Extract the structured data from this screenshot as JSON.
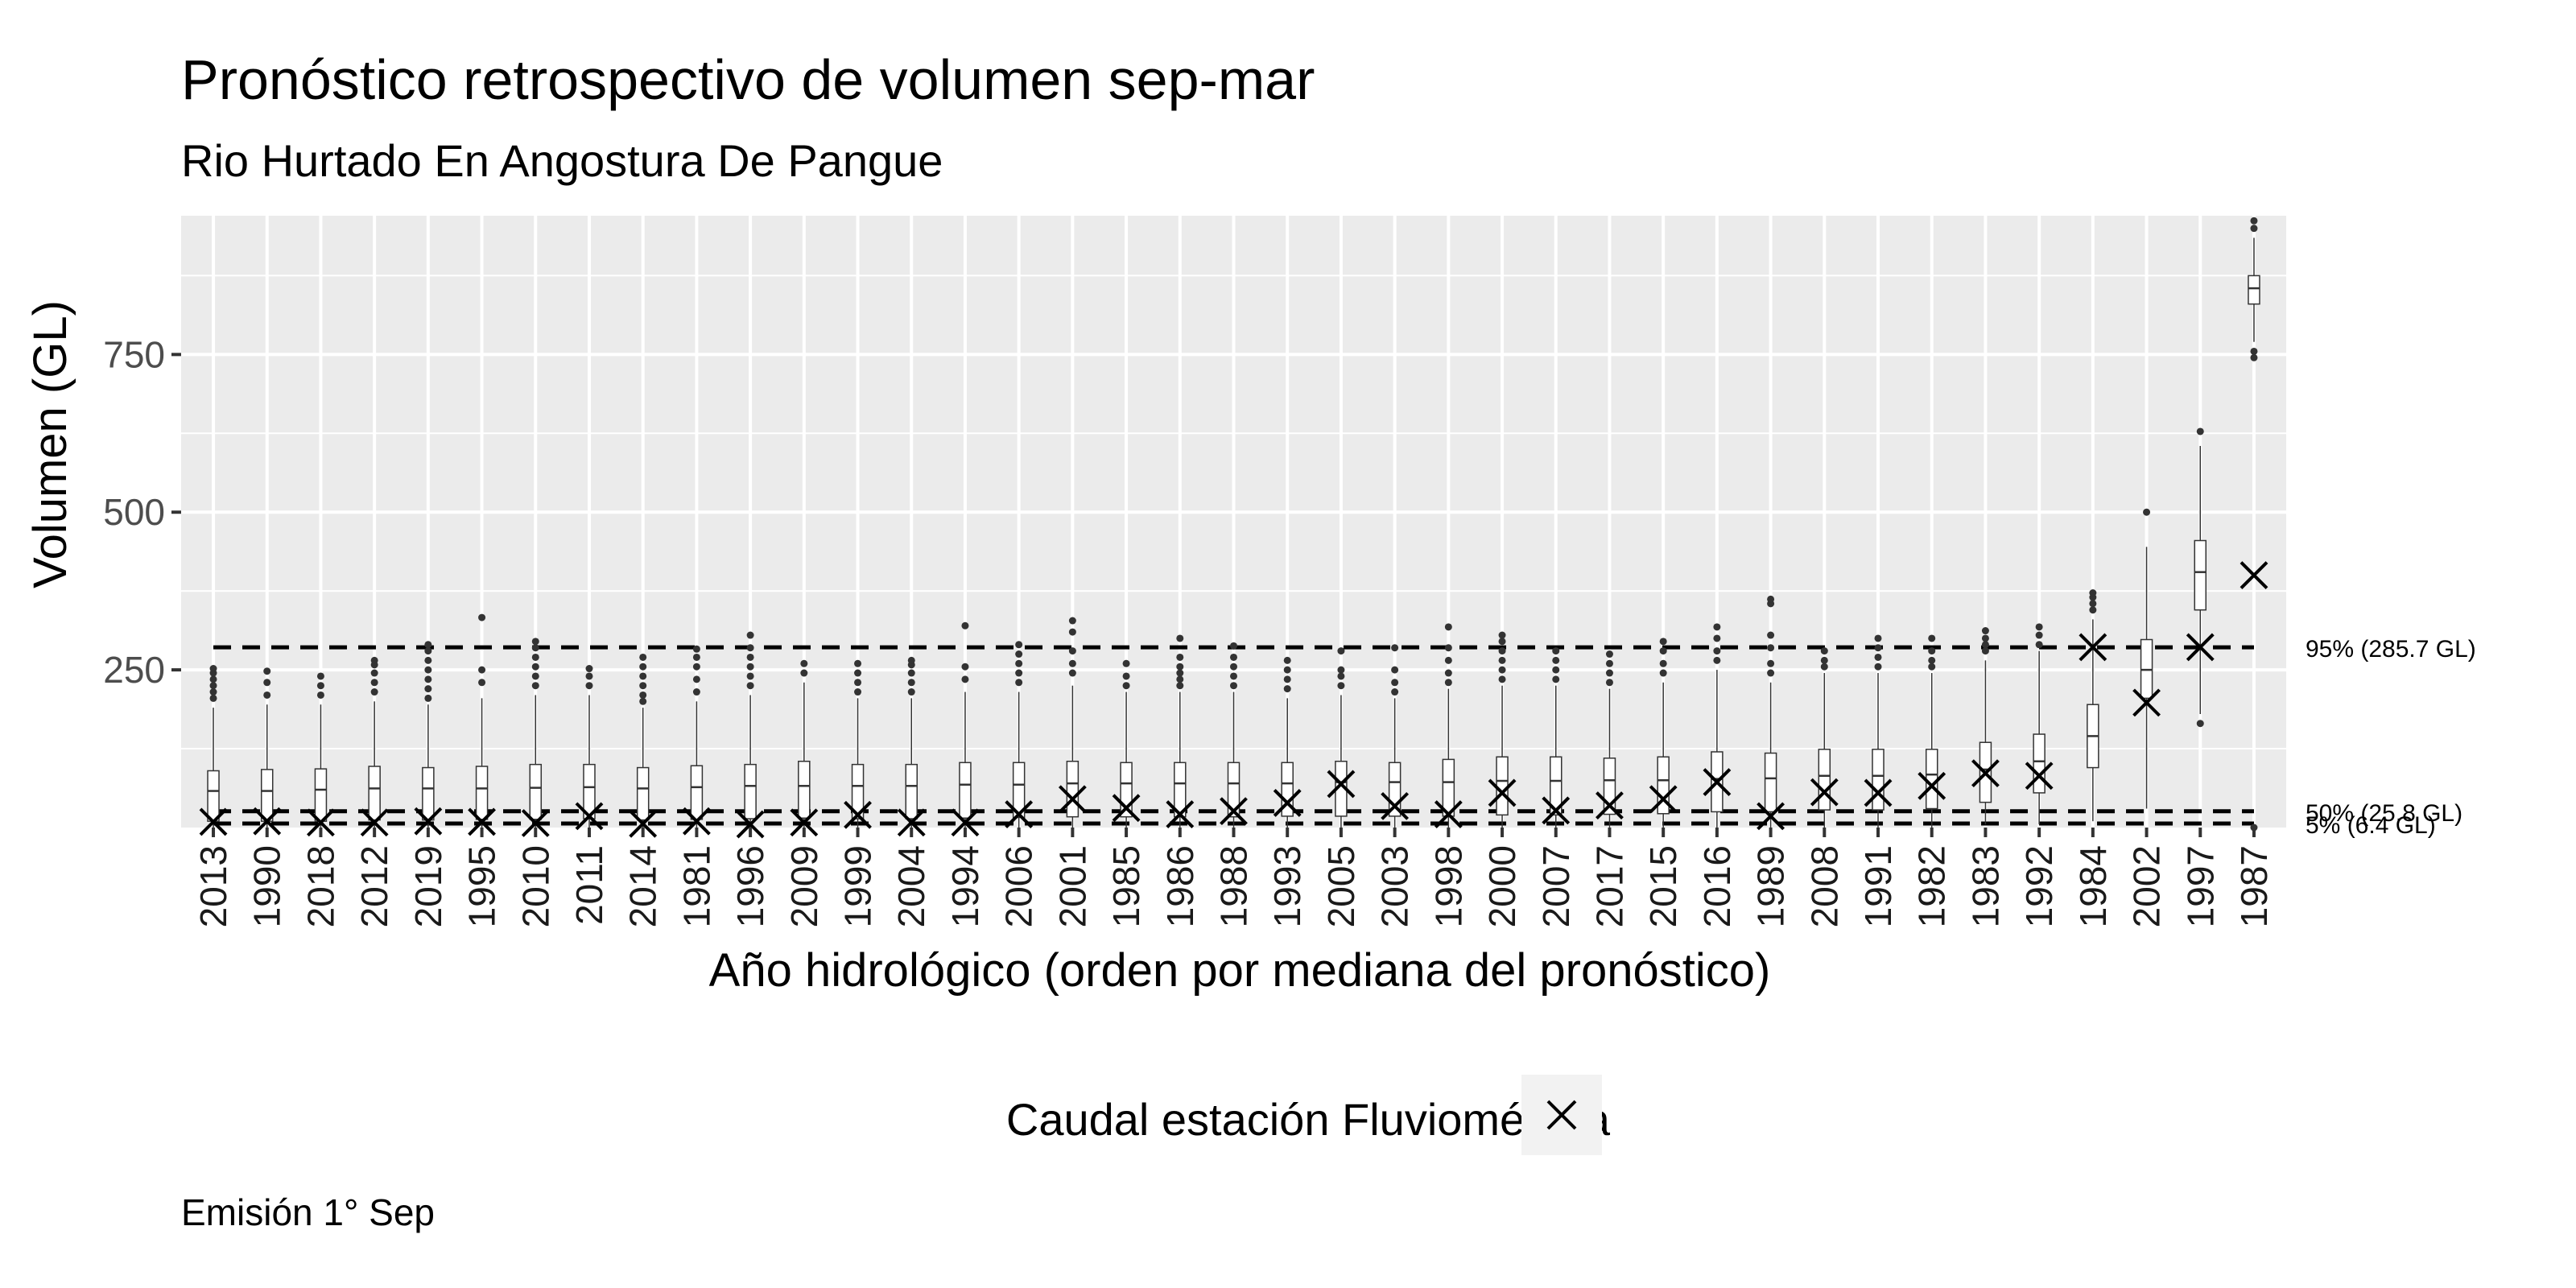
{
  "title": "Pronóstico retrospectivo de volumen sep-mar",
  "subtitle": "Rio Hurtado En Angostura De Pangue",
  "caption": "Emisión 1° Sep",
  "legend": {
    "label": "Caudal estación Fluviométrica",
    "marker": "x-cross-icon"
  },
  "colors": {
    "panel": "#ebebeb",
    "grid": "#ffffff",
    "box_outline": "#333333",
    "marker": "#000000"
  },
  "chart_data": {
    "type": "boxplot",
    "xlabel": "Año hidrológico (orden por mediana del pronóstico)",
    "ylabel": "Volumen (GL)",
    "ylim": [
      0,
      970
    ],
    "yticks": [
      250,
      500,
      750
    ],
    "ytick_labels": [
      "250",
      "500",
      "750"
    ],
    "grid": true,
    "legend_position": "bottom",
    "categories": [
      "2013",
      "1990",
      "2018",
      "2012",
      "2019",
      "1995",
      "2010",
      "2011",
      "2014",
      "1981",
      "1996",
      "2009",
      "1999",
      "2004",
      "1994",
      "2006",
      "2001",
      "1985",
      "1986",
      "1988",
      "1993",
      "2005",
      "2003",
      "1998",
      "2000",
      "2007",
      "2017",
      "2015",
      "2016",
      "1989",
      "2008",
      "1991",
      "1982",
      "1983",
      "1992",
      "1984",
      "2002",
      "1997",
      "1987"
    ],
    "boxes": [
      {
        "min": 0,
        "q1": 10,
        "median": 58,
        "q3": 90,
        "max": 190,
        "outliers": [
          205,
          215,
          225,
          235,
          245,
          252
        ]
      },
      {
        "min": 0,
        "q1": 10,
        "median": 58,
        "q3": 92,
        "max": 195,
        "outliers": [
          210,
          230,
          248
        ]
      },
      {
        "min": 0,
        "q1": 10,
        "median": 60,
        "q3": 93,
        "max": 195,
        "outliers": [
          210,
          225,
          240
        ]
      },
      {
        "min": 0,
        "q1": 12,
        "median": 62,
        "q3": 97,
        "max": 200,
        "outliers": [
          215,
          230,
          245,
          258,
          265
        ]
      },
      {
        "min": 0,
        "q1": 12,
        "median": 62,
        "q3": 95,
        "max": 195,
        "outliers": [
          205,
          220,
          235,
          250,
          265,
          280,
          290
        ]
      },
      {
        "min": 0,
        "q1": 13,
        "median": 62,
        "q3": 97,
        "max": 205,
        "outliers": [
          230,
          250,
          333
        ]
      },
      {
        "min": 0,
        "q1": 13,
        "median": 63,
        "q3": 100,
        "max": 210,
        "outliers": [
          225,
          240,
          255,
          270,
          285,
          295
        ]
      },
      {
        "min": 0,
        "q1": 14,
        "median": 64,
        "q3": 100,
        "max": 210,
        "outliers": [
          225,
          240,
          252
        ]
      },
      {
        "min": 0,
        "q1": 12,
        "median": 62,
        "q3": 95,
        "max": 190,
        "outliers": [
          200,
          210,
          225,
          240,
          255,
          270
        ]
      },
      {
        "min": 0,
        "q1": 13,
        "median": 64,
        "q3": 98,
        "max": 200,
        "outliers": [
          215,
          235,
          255,
          270,
          283
        ]
      },
      {
        "min": 0,
        "q1": 14,
        "median": 66,
        "q3": 100,
        "max": 210,
        "outliers": [
          225,
          240,
          255,
          270,
          285,
          305
        ]
      },
      {
        "min": 0,
        "q1": 15,
        "median": 66,
        "q3": 105,
        "max": 230,
        "outliers": [
          245,
          260
        ]
      },
      {
        "min": 0,
        "q1": 14,
        "median": 66,
        "q3": 100,
        "max": 205,
        "outliers": [
          215,
          230,
          245,
          260
        ]
      },
      {
        "min": 0,
        "q1": 14,
        "median": 66,
        "q3": 100,
        "max": 205,
        "outliers": [
          215,
          230,
          245,
          258,
          265
        ]
      },
      {
        "min": 0,
        "q1": 15,
        "median": 68,
        "q3": 103,
        "max": 215,
        "outliers": [
          235,
          255,
          320
        ]
      },
      {
        "min": 0,
        "q1": 16,
        "median": 68,
        "q3": 103,
        "max": 215,
        "outliers": [
          230,
          245,
          260,
          275,
          290
        ]
      },
      {
        "min": 0,
        "q1": 17,
        "median": 70,
        "q3": 105,
        "max": 225,
        "outliers": [
          245,
          260,
          280,
          310,
          328
        ]
      },
      {
        "min": 0,
        "q1": 17,
        "median": 70,
        "q3": 103,
        "max": 215,
        "outliers": [
          225,
          240,
          260
        ]
      },
      {
        "min": 0,
        "q1": 17,
        "median": 70,
        "q3": 103,
        "max": 215,
        "outliers": [
          225,
          235,
          245,
          255,
          270,
          300
        ]
      },
      {
        "min": 0,
        "q1": 17,
        "median": 70,
        "q3": 103,
        "max": 215,
        "outliers": [
          225,
          240,
          255,
          270,
          288
        ]
      },
      {
        "min": 0,
        "q1": 18,
        "median": 70,
        "q3": 103,
        "max": 205,
        "outliers": [
          220,
          235,
          250,
          265
        ]
      },
      {
        "min": 0,
        "q1": 18,
        "median": 72,
        "q3": 105,
        "max": 210,
        "outliers": [
          225,
          240,
          250,
          280
        ]
      },
      {
        "min": 0,
        "q1": 18,
        "median": 72,
        "q3": 103,
        "max": 205,
        "outliers": [
          215,
          230,
          250,
          285
        ]
      },
      {
        "min": 0,
        "q1": 18,
        "median": 72,
        "q3": 108,
        "max": 220,
        "outliers": [
          230,
          245,
          265,
          285,
          318
        ]
      },
      {
        "min": 0,
        "q1": 20,
        "median": 74,
        "q3": 112,
        "max": 225,
        "outliers": [
          235,
          250,
          265,
          280,
          295,
          305
        ]
      },
      {
        "min": 0,
        "q1": 20,
        "median": 74,
        "q3": 112,
        "max": 225,
        "outliers": [
          235,
          250,
          265,
          280
        ]
      },
      {
        "min": 0,
        "q1": 21,
        "median": 75,
        "q3": 110,
        "max": 220,
        "outliers": [
          230,
          245,
          260,
          275
        ]
      },
      {
        "min": 0,
        "q1": 22,
        "median": 75,
        "q3": 112,
        "max": 230,
        "outliers": [
          245,
          260,
          280,
          295
        ]
      },
      {
        "min": 0,
        "q1": 25,
        "median": 77,
        "q3": 120,
        "max": 250,
        "outliers": [
          265,
          280,
          300,
          318
        ]
      },
      {
        "min": 0,
        "q1": 25,
        "median": 78,
        "q3": 118,
        "max": 230,
        "outliers": [
          245,
          260,
          285,
          305,
          355,
          362
        ]
      },
      {
        "min": 0,
        "q1": 28,
        "median": 82,
        "q3": 124,
        "max": 245,
        "outliers": [
          255,
          265,
          280
        ]
      },
      {
        "min": 0,
        "q1": 28,
        "median": 82,
        "q3": 124,
        "max": 245,
        "outliers": [
          255,
          270,
          285,
          300
        ]
      },
      {
        "min": 0,
        "q1": 30,
        "median": 84,
        "q3": 124,
        "max": 245,
        "outliers": [
          255,
          265,
          280,
          300
        ]
      },
      {
        "min": 5,
        "q1": 40,
        "median": 92,
        "q3": 135,
        "max": 265,
        "outliers": [
          280,
          290,
          300,
          312
        ]
      },
      {
        "min": 5,
        "q1": 55,
        "median": 105,
        "q3": 148,
        "max": 280,
        "outliers": [
          290,
          305,
          318
        ]
      },
      {
        "min": 10,
        "q1": 95,
        "median": 145,
        "q3": 195,
        "max": 330,
        "outliers": [
          345,
          355,
          365,
          372
        ]
      },
      {
        "min": 30,
        "q1": 205,
        "median": 250,
        "q3": 298,
        "max": 445,
        "outliers": [
          500
        ]
      },
      {
        "min": 180,
        "q1": 345,
        "median": 405,
        "q3": 455,
        "max": 605,
        "outliers": [
          165,
          628
        ]
      },
      {
        "min": 770,
        "q1": 830,
        "median": 855,
        "q3": 875,
        "max": 935,
        "outliers": [
          0,
          745,
          755,
          950,
          962
        ]
      }
    ],
    "observed": [
      9,
      10,
      8,
      8,
      10,
      9,
      7,
      18,
      6,
      10,
      5,
      8,
      20,
      8,
      8,
      21,
      45,
      31,
      21,
      26,
      39,
      69,
      34,
      21,
      55,
      27,
      35,
      45,
      72,
      18,
      56,
      55,
      66,
      86,
      82,
      286,
      198,
      286,
      400
    ],
    "reference_lines": [
      {
        "label": "95% (285.7 GL)",
        "value": 285.7
      },
      {
        "label": "50% (25.8 GL)",
        "value": 25.8
      },
      {
        "label": "5% (6.4 GL)",
        "value": 6.4
      }
    ]
  }
}
